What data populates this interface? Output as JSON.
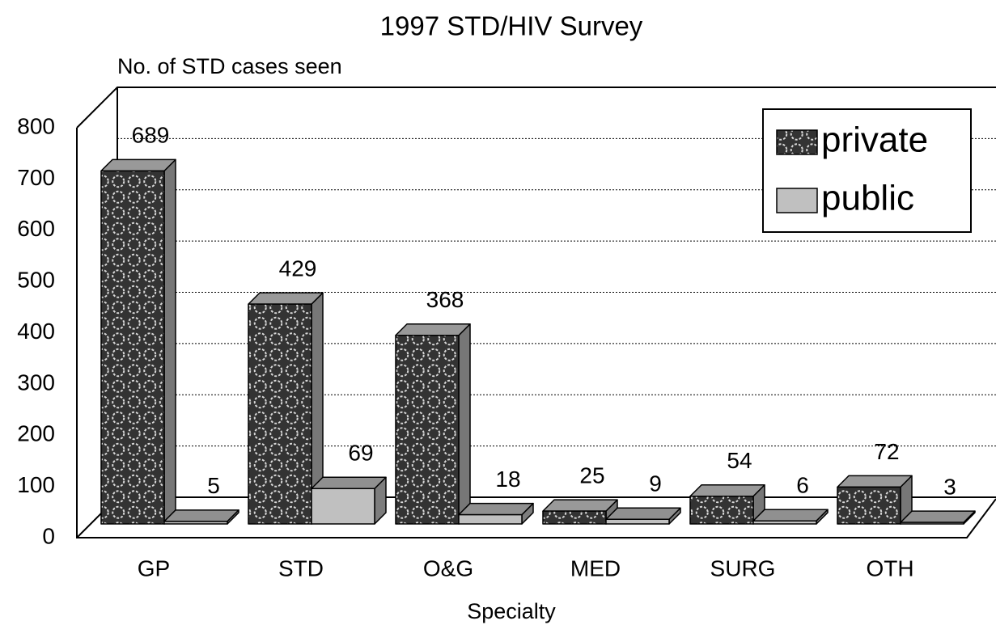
{
  "chart_data": {
    "type": "bar3d",
    "title": "1997 STD/HIV Survey",
    "y_label": "No. of STD cases seen",
    "x_label": "Specialty",
    "categories": [
      "GP",
      "STD",
      "O&G",
      "MED",
      "SURG",
      "OTH"
    ],
    "series": [
      {
        "name": "private",
        "color": "#333333",
        "values": [
          689,
          429,
          368,
          25,
          54,
          72
        ]
      },
      {
        "name": "public",
        "color": "#c0c0c0",
        "values": [
          5,
          69,
          18,
          9,
          6,
          3
        ]
      }
    ],
    "ylim": [
      0,
      800
    ],
    "yticks": [
      0,
      100,
      200,
      300,
      400,
      500,
      600,
      700,
      800
    ],
    "grid": true,
    "legend": "top-right"
  }
}
